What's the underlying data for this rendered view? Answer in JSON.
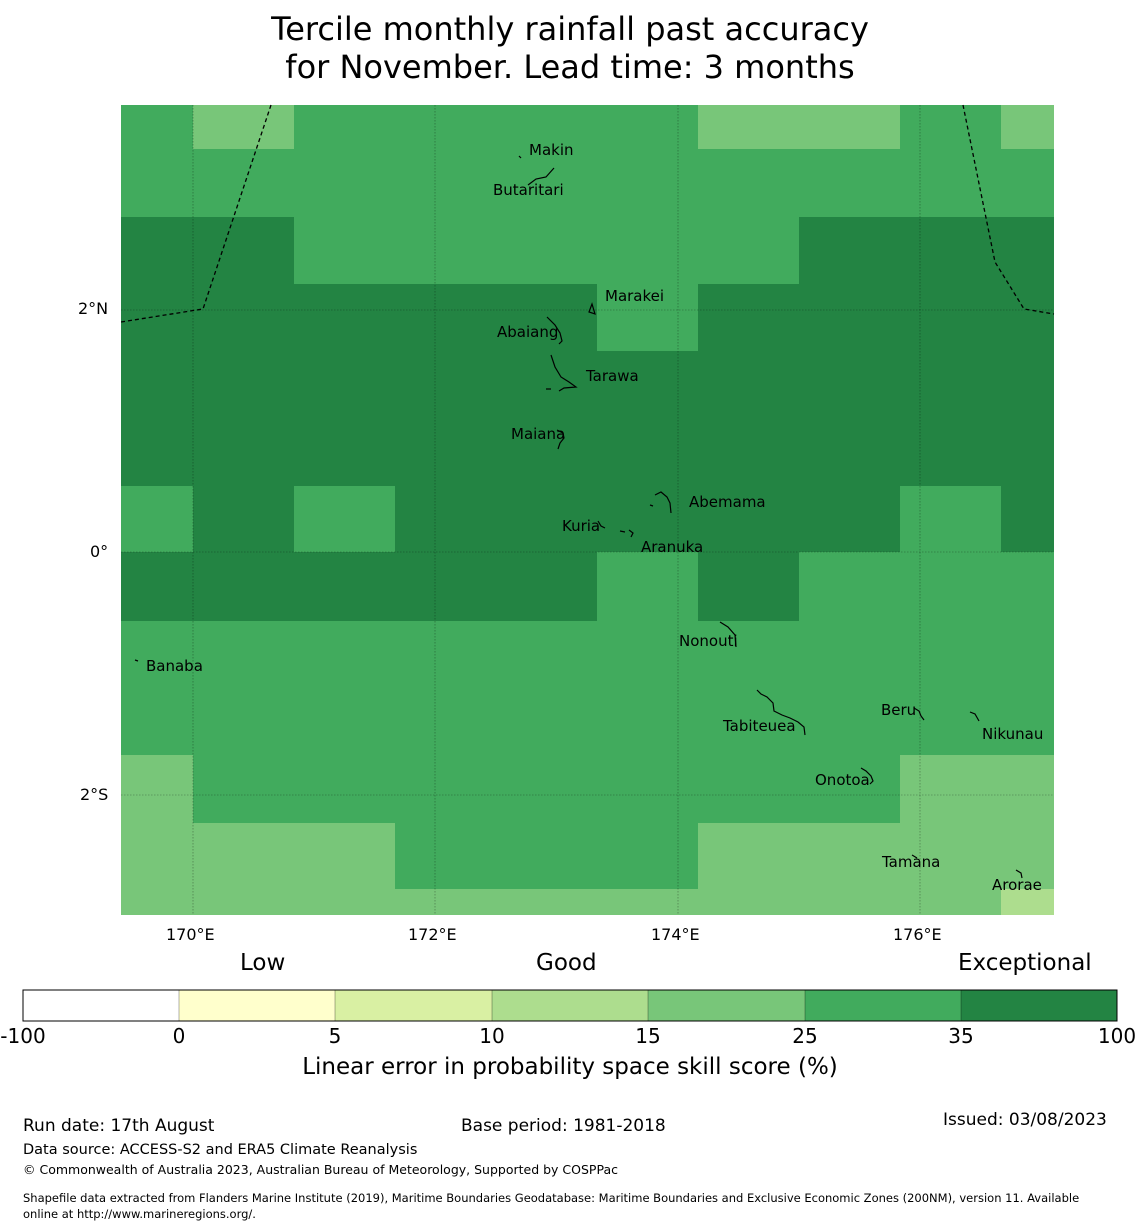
{
  "title_line1": "Tercile monthly rainfall past accuracy",
  "title_line2": "for November. Lead time: 3 months",
  "axes": {
    "lon_ticks": [
      "170°E",
      "172°E",
      "174°E",
      "176°E"
    ],
    "lat_ticks": [
      "2°N",
      "0°",
      "2°S"
    ]
  },
  "colors": {
    "c15_25": "#78c679",
    "c25_35": "#41ab5d",
    "c35_100": "#238443",
    "c10_15": "#addd8e"
  },
  "islands": [
    {
      "name": "Makin"
    },
    {
      "name": "Butaritari"
    },
    {
      "name": "Marakei"
    },
    {
      "name": "Abaiang"
    },
    {
      "name": "Tarawa"
    },
    {
      "name": "Maiana"
    },
    {
      "name": "Abemama"
    },
    {
      "name": "Kuria"
    },
    {
      "name": "Aranuka"
    },
    {
      "name": "Nonouti"
    },
    {
      "name": "Banaba"
    },
    {
      "name": "Tabiteuea"
    },
    {
      "name": "Beru"
    },
    {
      "name": "Nikunau"
    },
    {
      "name": "Onotoa"
    },
    {
      "name": "Tamana"
    },
    {
      "name": "Arorae"
    }
  ],
  "colorbar": {
    "category_low": "Low",
    "category_good": "Good",
    "category_exceptional": "Exceptional",
    "ticks": [
      "-100",
      "0",
      "5",
      "10",
      "15",
      "25",
      "35",
      "100"
    ],
    "colors": [
      "#ffffff",
      "#ffffcc",
      "#d9f0a3",
      "#addd8e",
      "#78c679",
      "#41ab5d",
      "#238443"
    ],
    "label": "Linear error in probability space skill score (%)"
  },
  "footer": {
    "run_date": "Run date: 17th August",
    "base_period": "Base period: 1981-2018",
    "issued": "Issued: 03/08/2023",
    "data_source": "Data source: ACCESS-S2 and ERA5 Climate Reanalysis",
    "copyright": "© Commonwealth of Australia 2023, Australian Bureau of Meteorology, Supported by COSPPac",
    "shapefile_line1": "Shapefile data extracted from Flanders Marine Institute (2019), Maritime Boundaries Geodatabase: Maritime Boundaries and Exclusive Economic Zones (200NM), version 11. Available",
    "shapefile_line2": "online at http://www.marineregions.org/."
  }
}
